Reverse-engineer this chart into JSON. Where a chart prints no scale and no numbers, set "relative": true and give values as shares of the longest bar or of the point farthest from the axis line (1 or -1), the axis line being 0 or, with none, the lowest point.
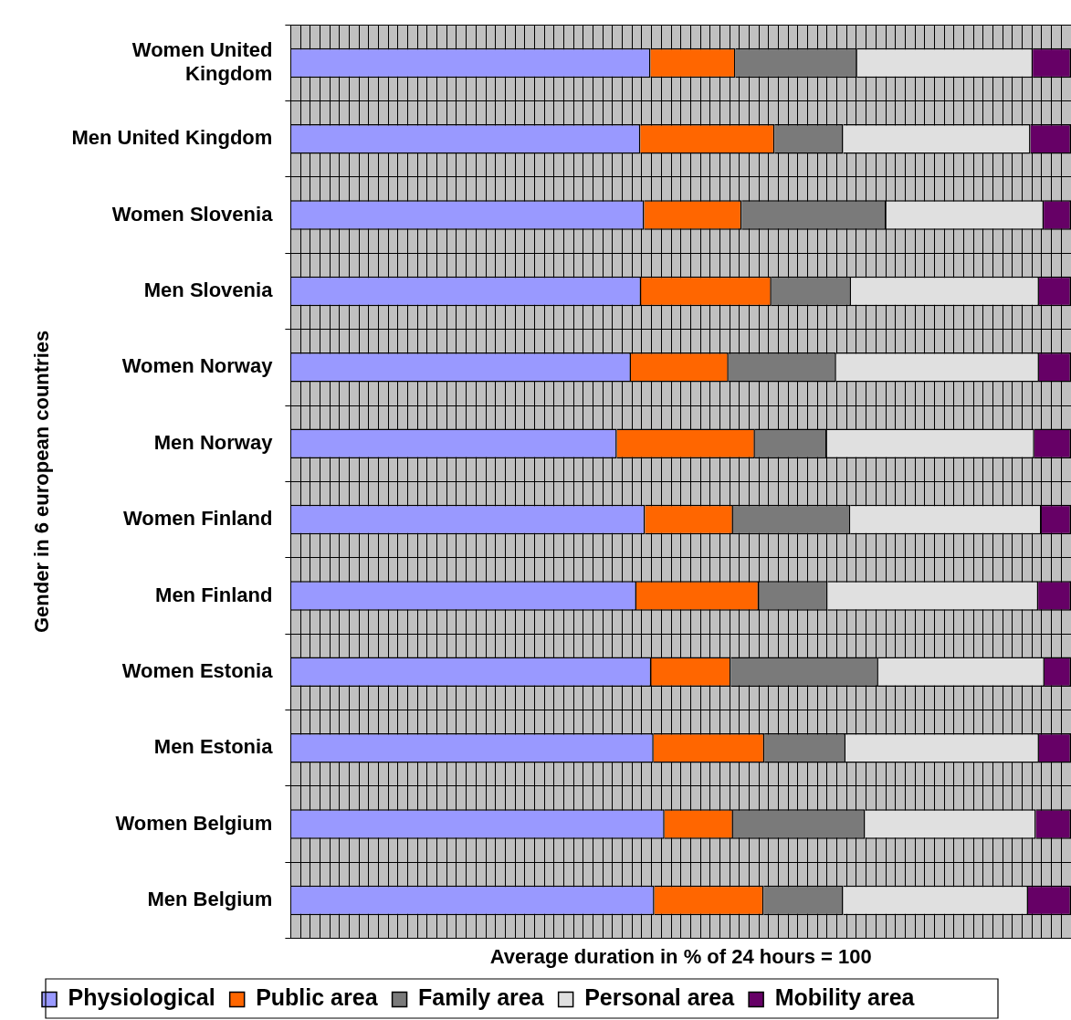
{
  "chart_data": {
    "type": "bar",
    "orientation": "horizontal",
    "stacked": true,
    "relative": true,
    "xlabel": "Average duration in % of 24 hours = 100",
    "ylabel": "Gender in 6 european countries",
    "categories": [
      "Women United Kingdom",
      "Men United Kingdom",
      "Women Slovenia",
      "Men Slovenia",
      "Women Norway",
      "Men Norway",
      "Women Finland",
      "Men Finland",
      "Women Estonia",
      "Men Estonia",
      "Women Belgium",
      "Men Belgium"
    ],
    "series": [
      {
        "name": "Physiological",
        "color": "#9999ff",
        "values": [
          0.461,
          0.448,
          0.453,
          0.449,
          0.436,
          0.418,
          0.454,
          0.443,
          0.462,
          0.465,
          0.479,
          0.466
        ]
      },
      {
        "name": "Public area",
        "color": "#ff6600",
        "values": [
          0.109,
          0.172,
          0.125,
          0.167,
          0.125,
          0.177,
          0.113,
          0.157,
          0.102,
          0.142,
          0.088,
          0.14
        ]
      },
      {
        "name": "Family area",
        "color": "#7a7a7a",
        "values": [
          0.156,
          0.088,
          0.185,
          0.102,
          0.138,
          0.092,
          0.15,
          0.088,
          0.189,
          0.104,
          0.169,
          0.102
        ]
      },
      {
        "name": "Personal area",
        "color": "#e0e0e0",
        "values": [
          0.225,
          0.24,
          0.202,
          0.241,
          0.26,
          0.266,
          0.245,
          0.27,
          0.213,
          0.248,
          0.219,
          0.237
        ]
      },
      {
        "name": "Mobility area",
        "color": "#660066",
        "values": [
          0.049,
          0.052,
          0.035,
          0.041,
          0.041,
          0.047,
          0.038,
          0.042,
          0.034,
          0.041,
          0.045,
          0.055
        ]
      }
    ],
    "grid": true,
    "legend": "bottom"
  }
}
